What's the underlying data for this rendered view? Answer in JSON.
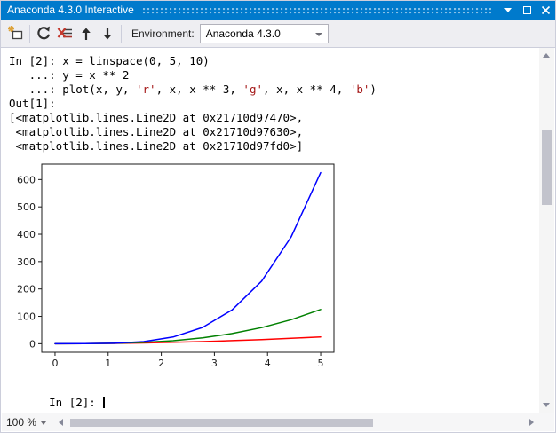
{
  "window": {
    "title": "Anaconda 4.3.0 Interactive",
    "accent_color": "#007acc"
  },
  "toolbar": {
    "icons": [
      "new-interactive-window-icon",
      "reset-icon",
      "clear-screen-icon",
      "history-previous-icon",
      "history-next-icon"
    ],
    "environment_label": "Environment:",
    "environment_value": "Anaconda 4.3.0"
  },
  "console": {
    "colors": {
      "default": "#000000",
      "string": "#a31515"
    },
    "lines": [
      [
        {
          "t": "In [2]: x = linspace(0, 5, 10)",
          "c": "default"
        }
      ],
      [
        {
          "t": "   ...: y = x ** 2",
          "c": "default"
        }
      ],
      [
        {
          "t": "   ...: plot(x, y, ",
          "c": "default"
        },
        {
          "t": "'r'",
          "c": "string"
        },
        {
          "t": ", x, x ** 3, ",
          "c": "default"
        },
        {
          "t": "'g'",
          "c": "string"
        },
        {
          "t": ", x, x ** 4, ",
          "c": "default"
        },
        {
          "t": "'b'",
          "c": "string"
        },
        {
          "t": ")",
          "c": "default"
        }
      ],
      [
        {
          "t": "Out[1]:",
          "c": "default"
        }
      ],
      [
        {
          "t": "[<matplotlib.lines.Line2D at 0x21710d97470>,",
          "c": "default"
        }
      ],
      [
        {
          "t": " <matplotlib.lines.Line2D at 0x21710d97630>,",
          "c": "default"
        }
      ],
      [
        {
          "t": " <matplotlib.lines.Line2D at 0x21710d97fd0>]",
          "c": "default"
        }
      ]
    ],
    "prompt": "In [2]: "
  },
  "chart_data": {
    "type": "line",
    "title": "",
    "xlabel": "",
    "ylabel": "",
    "grid": false,
    "legend": null,
    "x": [
      0,
      0.5556,
      1.1111,
      1.6667,
      2.2222,
      2.7778,
      3.3333,
      3.8889,
      4.4444,
      5.0
    ],
    "series": [
      {
        "name": "x ** 2",
        "color": "#ff0000",
        "values": [
          0,
          0.31,
          1.23,
          2.78,
          4.94,
          7.72,
          11.11,
          15.12,
          19.75,
          25.0
        ]
      },
      {
        "name": "x ** 3",
        "color": "#008000",
        "values": [
          0,
          0.17,
          1.37,
          4.63,
          10.97,
          21.43,
          37.04,
          58.81,
          87.79,
          125.0
        ]
      },
      {
        "name": "x ** 4",
        "color": "#0000ff",
        "values": [
          0,
          0.1,
          1.52,
          7.72,
          24.39,
          59.54,
          123.46,
          228.72,
          390.18,
          625.0
        ]
      }
    ],
    "xticks": [
      0,
      1,
      2,
      3,
      4,
      5
    ],
    "yticks": [
      0,
      100,
      200,
      300,
      400,
      500,
      600
    ],
    "xlim": [
      -0.25,
      5.25
    ],
    "ylim": [
      -31.25,
      656.25
    ]
  },
  "statusbar": {
    "zoom_level": "100 %"
  }
}
